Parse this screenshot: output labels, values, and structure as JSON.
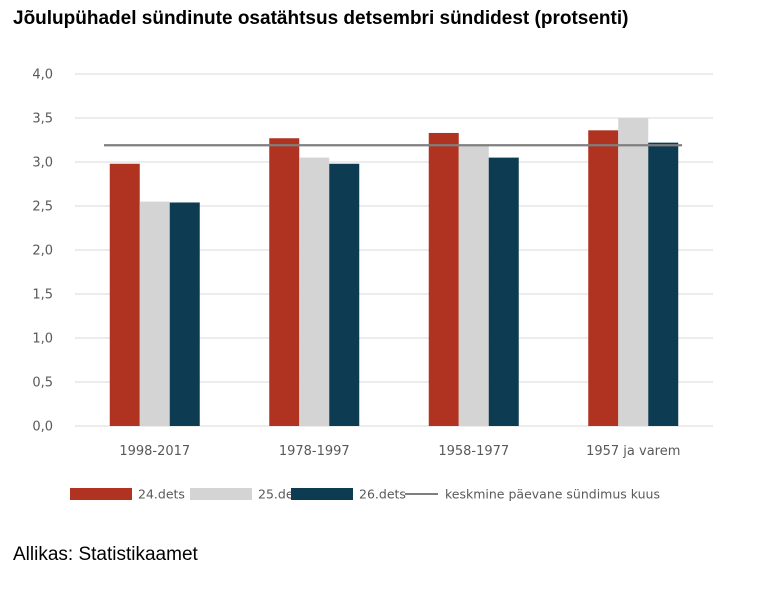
{
  "chart_data": {
    "type": "bar",
    "title": "Jõulupühadel sündinute osatähtsus detsembri sündidest (protsenti)",
    "categories": [
      "1998-2017",
      "1978-1997",
      "1958-1977",
      "1957 ja varem"
    ],
    "series": [
      {
        "name": "24.dets",
        "values": [
          2.98,
          3.27,
          3.33,
          3.36
        ],
        "color": "#b03220"
      },
      {
        "name": "25.dets",
        "values": [
          2.55,
          3.05,
          3.18,
          3.5
        ],
        "color": "#d4d4d4"
      },
      {
        "name": "26.dets",
        "values": [
          2.54,
          2.98,
          3.05,
          3.22
        ],
        "color": "#0d3b52"
      }
    ],
    "reference_line": {
      "name": "keskmine päevane sündimus kuus",
      "value": 3.19,
      "color": "#7f7f7f"
    },
    "ylim": [
      0,
      4
    ],
    "yticks": [
      "0,0",
      "0,5",
      "1,0",
      "1,5",
      "2,0",
      "2,5",
      "3,0",
      "3,5",
      "4,0"
    ],
    "grid": true,
    "legend_position": "bottom"
  },
  "source": "Allikas: Statistikaamet"
}
